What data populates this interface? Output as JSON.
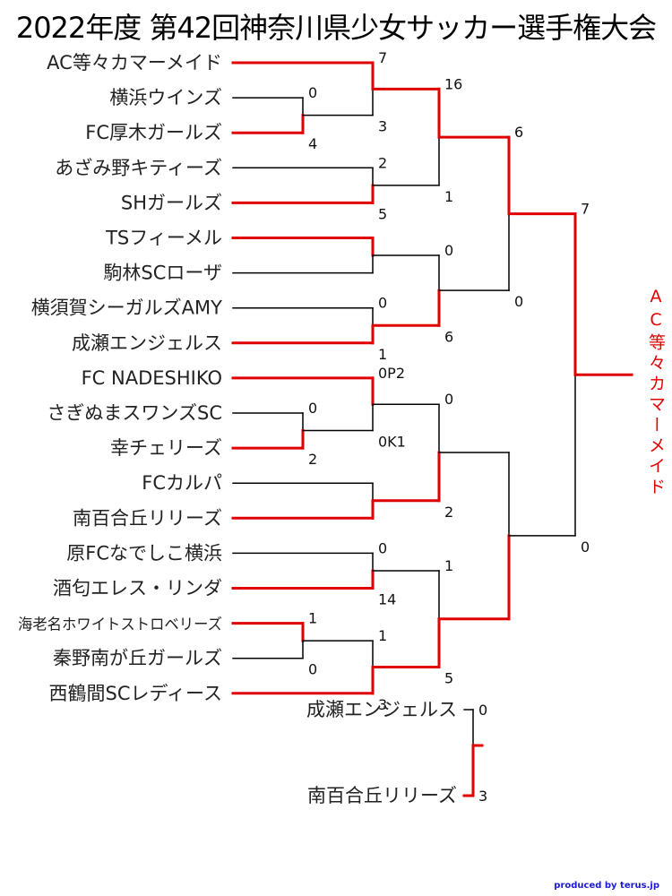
{
  "title": "2022年度 第42回神奈川県少女サッカー選手権大会",
  "credit": "produced by terus.jp",
  "colors": {
    "win": "#e00000",
    "lose": "#000000"
  },
  "chart_data": {
    "type": "table",
    "title": "2022年度 第42回神奈川県少女サッカー選手権大会",
    "teams": [
      "AC等々カマーメイド",
      "横浜ウインズ",
      "FC厚木ガールズ",
      "あざみ野キティーズ",
      "SHガールズ",
      "TSフィーメル",
      "駒林SCローザ",
      "横須賀シーガルズAMY",
      "成瀬エンジェルス",
      "FC NADESHIKO",
      "さぎぬまスワンズSC",
      "幸チェリーズ",
      "FCカルパ",
      "南百合丘リリーズ",
      "原FCなでしこ横浜",
      "酒匂エレス・リンダ",
      "海老名ホワイトストロベリーズ",
      "秦野南が丘ガールズ",
      "西鶴間SCレディース"
    ],
    "champion": "AC等々カマーメイド",
    "matches": [
      {
        "round": 1,
        "top": "横浜ウインズ",
        "bottom": "FC厚木ガールズ",
        "top_score": "0",
        "bottom_score": "4",
        "winner": "bottom"
      },
      {
        "round": 1,
        "top": "さぎぬまスワンズSC",
        "bottom": "幸チェリーズ",
        "top_score": "0",
        "bottom_score": "2",
        "winner": "bottom"
      },
      {
        "round": 1,
        "top": "海老名ホワイトストロベリーズ",
        "bottom": "秦野南が丘ガールズ",
        "top_score": "1",
        "bottom_score": "0",
        "winner": "top"
      },
      {
        "round": 2,
        "top": "AC等々カマーメイド",
        "bottom": "FC厚木ガールズ",
        "top_score": "7",
        "bottom_score": "3",
        "winner": "top"
      },
      {
        "round": 2,
        "top": "あざみ野キティーズ",
        "bottom": "SHガールズ",
        "top_score": "2",
        "bottom_score": "5",
        "winner": "bottom"
      },
      {
        "round": 2,
        "top": "TSフィーメル",
        "bottom": "駒林SCローザ",
        "top_score": "",
        "bottom_score": "",
        "winner": "top"
      },
      {
        "round": 2,
        "top": "横須賀シーガルズAMY",
        "bottom": "成瀬エンジェルス",
        "top_score": "0",
        "bottom_score": "1",
        "winner": "bottom"
      },
      {
        "round": 2,
        "top": "FC NADESHIKO",
        "bottom": "幸チェリーズ",
        "top_score": "0P2",
        "bottom_score": "0K1",
        "winner": "top"
      },
      {
        "round": 2,
        "top": "FCカルパ",
        "bottom": "南百合丘リリーズ",
        "top_score": "",
        "bottom_score": "",
        "winner": "bottom"
      },
      {
        "round": 2,
        "top": "原FCなでしこ横浜",
        "bottom": "酒匂エレス・リンダ",
        "top_score": "0",
        "bottom_score": "14",
        "winner": "bottom"
      },
      {
        "round": 2,
        "top": "海老名ホワイトストロベリーズ",
        "bottom": "西鶴間SCレディース",
        "top_score": "1",
        "bottom_score": "3",
        "winner": "bottom"
      },
      {
        "round": 3,
        "top": "AC等々カマーメイド",
        "bottom": "SHガールズ",
        "top_score": "16",
        "bottom_score": "1",
        "winner": "top"
      },
      {
        "round": 3,
        "top": "TSフィーメル",
        "bottom": "成瀬エンジェルス",
        "top_score": "0",
        "bottom_score": "6",
        "winner": "bottom"
      },
      {
        "round": 3,
        "top": "FC NADESHIKO",
        "bottom": "南百合丘リリーズ",
        "top_score": "0",
        "bottom_score": "2",
        "winner": "bottom"
      },
      {
        "round": 3,
        "top": "酒匂エレス・リンダ",
        "bottom": "西鶴間SCレディース",
        "top_score": "1",
        "bottom_score": "5",
        "winner": "bottom"
      },
      {
        "round": 4,
        "top": "AC等々カマーメイド",
        "bottom": "成瀬エンジェルス",
        "top_score": "6",
        "bottom_score": "0",
        "winner": "top"
      },
      {
        "round": 4,
        "top": "南百合丘リリーズ",
        "bottom": "西鶴間SCレディース",
        "top_score": "",
        "bottom_score": "",
        "winner": "bottom"
      },
      {
        "round": 5,
        "top": "AC等々カマーメイド",
        "bottom": "西鶴間SCレディース",
        "top_score": "7",
        "bottom_score": "0",
        "winner": "top"
      },
      {
        "round": "3rd",
        "top": "成瀬エンジェルス",
        "bottom": "南百合丘リリーズ",
        "top_score": "0",
        "bottom_score": "3",
        "winner": "bottom"
      }
    ]
  }
}
